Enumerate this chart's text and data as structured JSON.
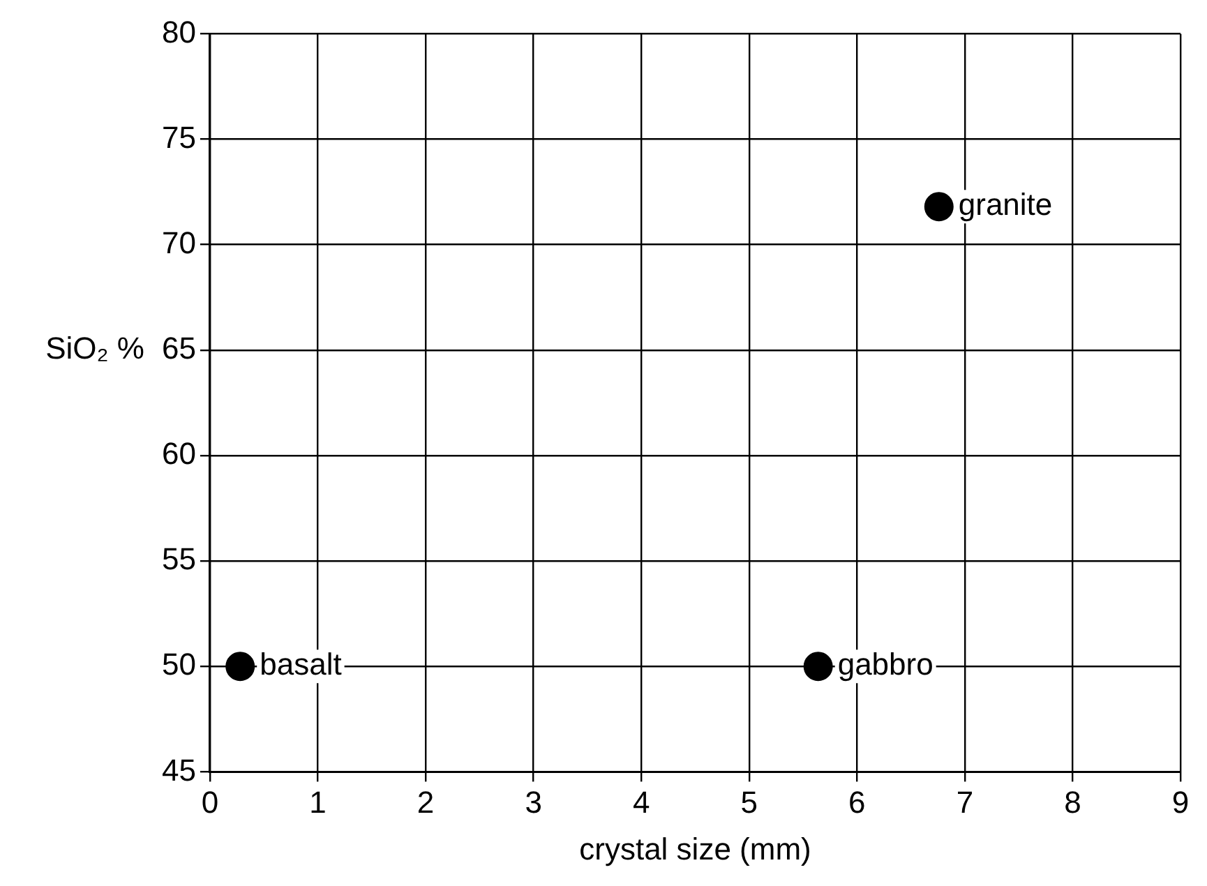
{
  "chart_data": {
    "type": "scatter",
    "xlabel": "crystal size (mm)",
    "ylabel": "SiO₂ %",
    "x": [
      0.28,
      5.64,
      6.76
    ],
    "values": [
      50,
      50,
      71.8
    ],
    "color": "#000000",
    "marker": "circle",
    "xlim": [
      0,
      9
    ],
    "xticks": [
      0,
      1,
      2,
      3,
      4,
      5,
      6,
      7,
      8,
      9
    ],
    "ylim": [
      45,
      80
    ],
    "yticks": [
      45,
      50,
      55,
      60,
      65,
      70,
      75,
      80
    ],
    "grid": true,
    "legend": false,
    "annotations": [
      {
        "text": "basalt",
        "x": 0.28,
        "y": 50
      },
      {
        "text": "gabbro",
        "x": 5.64,
        "y": 50
      },
      {
        "text": "granite",
        "x": 6.76,
        "y": 71.8
      }
    ]
  }
}
